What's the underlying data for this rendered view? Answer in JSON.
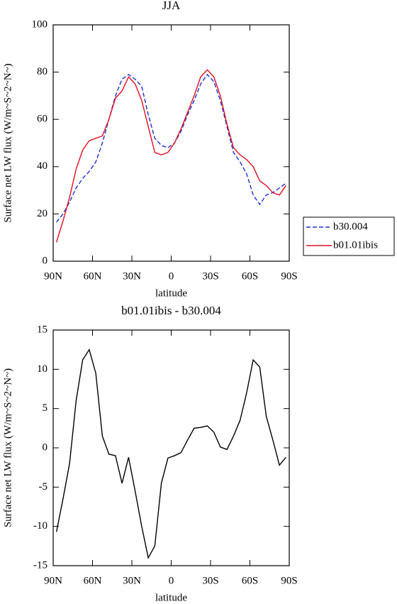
{
  "chart_data": [
    {
      "type": "line",
      "title": "JJA",
      "xlabel": "latitude",
      "ylabel": "Surface net LW flux (W/m~S~2~N~)",
      "x": [
        87.5,
        82.5,
        77.5,
        72.5,
        67.5,
        62.5,
        57.5,
        52.5,
        47.5,
        42.5,
        37.5,
        32.5,
        27.5,
        22.5,
        17.5,
        12.5,
        7.5,
        2.5,
        -2.5,
        -7.5,
        -12.5,
        -17.5,
        -22.5,
        -27.5,
        -32.5,
        -37.5,
        -42.5,
        -47.5,
        -52.5,
        -57.5,
        -62.5,
        -67.5,
        -72.5,
        -77.5,
        -82.5,
        -87.5
      ],
      "series": [
        {
          "name": "b30.004",
          "color": "#1f2fd0",
          "linestyle": "dashed",
          "values": [
            16.5,
            20,
            25,
            31,
            35,
            38,
            42,
            50,
            60,
            70,
            77,
            79,
            77,
            74,
            62,
            52,
            49,
            48,
            50,
            55,
            62,
            68,
            75,
            79,
            76,
            68,
            57,
            46,
            42,
            37,
            28,
            24,
            28,
            29,
            31,
            33
          ]
        },
        {
          "name": "b01.01ibis",
          "color": "#e01020",
          "linestyle": "solid",
          "values": [
            8,
            17,
            27,
            39,
            47,
            51,
            52,
            53,
            60,
            69,
            72,
            78,
            75,
            68,
            57,
            46,
            45,
            46,
            50,
            56,
            63,
            70,
            78,
            81,
            78,
            70,
            58,
            48,
            45,
            43,
            40,
            34,
            32,
            29,
            28,
            32
          ]
        }
      ],
      "xlim": [
        90,
        -90
      ],
      "xticks": [
        {
          "value": 90,
          "label": "90N"
        },
        {
          "value": 60,
          "label": "60N"
        },
        {
          "value": 30,
          "label": "30N"
        },
        0,
        {
          "value": -30,
          "label": "30S"
        },
        {
          "value": -60,
          "label": "60S"
        },
        {
          "value": -90,
          "label": "90S"
        }
      ],
      "ylim": [
        0,
        100
      ],
      "yticks": [
        0,
        20,
        40,
        60,
        80,
        100
      ],
      "legend": "right"
    },
    {
      "type": "line",
      "title": "b01.01ibis - b30.004",
      "xlabel": "latitude",
      "ylabel": "Surface net LW flux (W/m~S~2~N~)",
      "x": [
        87.5,
        82.5,
        77.5,
        72.5,
        67.5,
        62.5,
        57.5,
        52.5,
        47.5,
        42.5,
        37.5,
        32.5,
        27.5,
        22.5,
        17.5,
        12.5,
        7.5,
        2.5,
        -2.5,
        -7.5,
        -12.5,
        -17.5,
        -22.5,
        -27.5,
        -32.5,
        -37.5,
        -42.5,
        -47.5,
        -52.5,
        -57.5,
        -62.5,
        -67.5,
        -72.5,
        -77.5,
        -82.5,
        -87.5
      ],
      "series": [
        {
          "color": "#000000",
          "linestyle": "solid",
          "values": [
            -10.7,
            -6.5,
            -2,
            6,
            11.2,
            12.5,
            9.5,
            1.5,
            -0.8,
            -1,
            -4.5,
            -1.2,
            -5.5,
            -10,
            -14,
            -12.5,
            -4.5,
            -1.3,
            -1,
            -0.6,
            1,
            2.5,
            2.6,
            2.8,
            2,
            0.1,
            -0.2,
            1.5,
            3.5,
            7,
            11.2,
            10.3,
            4,
            1,
            -2.2,
            -1.2
          ]
        }
      ],
      "xlim": [
        90,
        -90
      ],
      "xticks": [
        {
          "value": 90,
          "label": "90N"
        },
        {
          "value": 60,
          "label": "60N"
        },
        {
          "value": 30,
          "label": "30N"
        },
        0,
        {
          "value": -30,
          "label": "30S"
        },
        {
          "value": -60,
          "label": "60S"
        },
        {
          "value": -90,
          "label": "90S"
        }
      ],
      "ylim": [
        -15,
        15
      ],
      "yticks": [
        -15,
        -10,
        -5,
        0,
        5,
        10,
        15
      ]
    }
  ]
}
